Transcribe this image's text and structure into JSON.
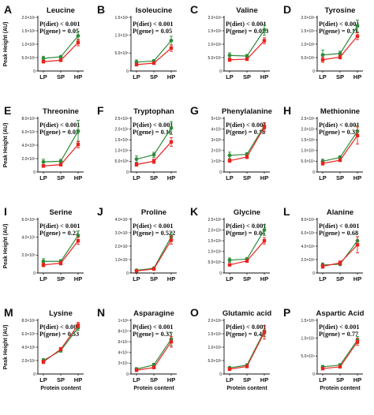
{
  "colors": {
    "series_a": "#2e8b3a",
    "series_b": "#e8231f",
    "axis": "#111111"
  },
  "axis_labels": {
    "y": "Peak Height (AU)",
    "x": "Protein content"
  },
  "chart_data": [
    {
      "type": "line",
      "letter": "A",
      "title": "Leucine",
      "stat_diet": "P(diet) < 0.001",
      "stat_gene": "P(gene) = 0.05",
      "ticks": [
        "0",
        "5.0×10⁵",
        "1.0×10⁶",
        "1.5×10⁶",
        "2.0×10⁶"
      ],
      "ylim": [
        0,
        2000000
      ],
      "categories": [
        "LP",
        "SP",
        "HP"
      ],
      "series": [
        {
          "color": "#2e8b3a",
          "values": [
            470000,
            530000,
            1310000
          ],
          "err": [
            80000,
            50000,
            160000
          ]
        },
        {
          "color": "#e8231f",
          "values": [
            350000,
            400000,
            1060000
          ],
          "err": [
            50000,
            40000,
            120000
          ]
        }
      ]
    },
    {
      "type": "line",
      "letter": "B",
      "title": "Isoleucine",
      "stat_diet": "P(diet) < 0.001",
      "stat_gene": "P(gene) = 0.05",
      "ticks": [
        "0",
        "5.0×10⁵",
        "1.0×10⁶",
        "1.5×10⁶"
      ],
      "ylim": [
        0,
        1500000
      ],
      "categories": [
        "LP",
        "SP",
        "HP"
      ],
      "series": [
        {
          "color": "#2e8b3a",
          "values": [
            250000,
            280000,
            850000
          ],
          "err": [
            60000,
            40000,
            120000
          ]
        },
        {
          "color": "#e8231f",
          "values": [
            180000,
            220000,
            640000
          ],
          "err": [
            40000,
            30000,
            90000
          ]
        }
      ]
    },
    {
      "type": "line",
      "letter": "C",
      "title": "Valine",
      "stat_diet": "P(diet) < 0.001",
      "stat_gene": "P(gene) = 0.023",
      "ticks": [
        "0",
        "5.0×10⁵",
        "1.0×10⁶",
        "1.5×10⁶",
        "2.0×10⁶"
      ],
      "ylim": [
        0,
        2000000
      ],
      "categories": [
        "LP",
        "SP",
        "HP"
      ],
      "series": [
        {
          "color": "#2e8b3a",
          "values": [
            580000,
            560000,
            1530000
          ],
          "err": [
            100000,
            60000,
            200000
          ]
        },
        {
          "color": "#e8231f",
          "values": [
            420000,
            440000,
            1130000
          ],
          "err": [
            60000,
            40000,
            110000
          ]
        }
      ]
    },
    {
      "type": "line",
      "letter": "D",
      "title": "Tyrosine",
      "stat_diet": "P(diet) < 0.001",
      "stat_gene": "P(gene) = 0.11",
      "ticks": [
        "0",
        "5.0×10⁵",
        "1.0×10⁶",
        "1.5×10⁶",
        "2.0×10⁶"
      ],
      "ylim": [
        0,
        2000000
      ],
      "categories": [
        "LP",
        "SP",
        "HP"
      ],
      "series": [
        {
          "color": "#2e8b3a",
          "values": [
            600000,
            650000,
            1680000
          ],
          "err": [
            180000,
            90000,
            220000
          ]
        },
        {
          "color": "#e8231f",
          "values": [
            420000,
            520000,
            1300000
          ],
          "err": [
            100000,
            70000,
            130000
          ]
        }
      ]
    },
    {
      "type": "line",
      "letter": "E",
      "title": "Threonine",
      "stat_diet": "P(diet) < 0.001",
      "stat_gene": "P(gene) = 0.03",
      "ticks": [
        "0",
        "2.0×10⁵",
        "4.0×10⁵",
        "6.0×10⁵",
        "8.0×10⁵"
      ],
      "ylim": [
        0,
        800000
      ],
      "categories": [
        "LP",
        "SP",
        "HP"
      ],
      "series": [
        {
          "color": "#2e8b3a",
          "values": [
            150000,
            160000,
            610000
          ],
          "err": [
            40000,
            30000,
            160000
          ]
        },
        {
          "color": "#e8231f",
          "values": [
            90000,
            110000,
            410000
          ],
          "err": [
            20000,
            20000,
            50000
          ]
        }
      ]
    },
    {
      "type": "line",
      "letter": "F",
      "title": "Tryptophan",
      "stat_diet": "P(diet) < 0.001",
      "stat_gene": "P(gene) = 0.16",
      "ticks": [
        "0",
        "5.0×10⁵",
        "1.0×10⁶",
        "1.5×10⁶",
        "2.0×10⁶",
        "2.5×10⁶"
      ],
      "ylim": [
        0,
        2500000
      ],
      "categories": [
        "LP",
        "SP",
        "HP"
      ],
      "series": [
        {
          "color": "#2e8b3a",
          "values": [
            600000,
            800000,
            2050000
          ],
          "err": [
            150000,
            120000,
            300000
          ]
        },
        {
          "color": "#e8231f",
          "values": [
            350000,
            500000,
            1400000
          ],
          "err": [
            80000,
            100000,
            200000
          ]
        }
      ]
    },
    {
      "type": "line",
      "letter": "G",
      "title": "Phenylalanine",
      "stat_diet": "P(diet) < 0.001",
      "stat_gene": "P(gene) = 0.18",
      "ticks": [
        "0",
        "1×10⁵",
        "2×10⁵",
        "3×10⁵",
        "4×10⁵",
        "5×10⁵"
      ],
      "ylim": [
        0,
        500000
      ],
      "categories": [
        "LP",
        "SP",
        "HP"
      ],
      "series": [
        {
          "color": "#2e8b3a",
          "values": [
            155000,
            165000,
            430000
          ],
          "err": [
            30000,
            15000,
            30000
          ]
        },
        {
          "color": "#e8231f",
          "values": [
            105000,
            140000,
            420000
          ],
          "err": [
            15000,
            15000,
            40000
          ]
        }
      ]
    },
    {
      "type": "line",
      "letter": "H",
      "title": "Methionine",
      "stat_diet": "P(diet) < 0.001",
      "stat_gene": "P(gene) = 0.32",
      "ticks": [
        "0",
        "5.0×10⁴",
        "1.0×10⁵",
        "1.5×10⁵",
        "2.0×10⁵",
        "2.5×10⁵"
      ],
      "ylim": [
        0,
        250000
      ],
      "categories": [
        "LP",
        "SP",
        "HP"
      ],
      "series": [
        {
          "color": "#2e8b3a",
          "values": [
            50000,
            68000,
            190000
          ],
          "err": [
            10000,
            8000,
            25000
          ]
        },
        {
          "color": "#e8231f",
          "values": [
            40000,
            55000,
            170000
          ],
          "err": [
            8000,
            6000,
            40000
          ]
        }
      ]
    },
    {
      "type": "line",
      "letter": "I",
      "title": "Serine",
      "stat_diet": "P(diet) < 0.001",
      "stat_gene": "P(gene) = 0.22",
      "ticks": [
        "0",
        "2.0×10⁵",
        "4.0×10⁵",
        "6.0×10⁵"
      ],
      "ylim": [
        0,
        600000
      ],
      "categories": [
        "LP",
        "SP",
        "HP"
      ],
      "series": [
        {
          "color": "#2e8b3a",
          "values": [
            130000,
            130000,
            420000
          ],
          "err": [
            30000,
            20000,
            50000
          ]
        },
        {
          "color": "#e8231f",
          "values": [
            90000,
            110000,
            360000
          ],
          "err": [
            20000,
            20000,
            40000
          ]
        }
      ]
    },
    {
      "type": "line",
      "letter": "J",
      "title": "Proline",
      "stat_diet": "P(diet) < 0.001",
      "stat_gene": "P(gene) = 0.522",
      "ticks": [
        "0",
        "1.0×10⁷",
        "2.0×10⁷",
        "3.0×10⁷",
        "4.0×10⁷"
      ],
      "ylim": [
        0,
        40000000
      ],
      "categories": [
        "LP",
        "SP",
        "HP"
      ],
      "series": [
        {
          "color": "#2e8b3a",
          "values": [
            2000000,
            3500000,
            27000000
          ],
          "err": [
            400000,
            500000,
            3000000
          ]
        },
        {
          "color": "#e8231f",
          "values": [
            1500000,
            3000000,
            24500000
          ],
          "err": [
            300000,
            500000,
            3000000
          ]
        }
      ]
    },
    {
      "type": "line",
      "letter": "K",
      "title": "Glycine",
      "stat_diet": "P(diet) < 0.001",
      "stat_gene": "P(gene) = 0.04",
      "ticks": [
        "0",
        "5.0×10⁵",
        "1.0×10⁶",
        "1.5×10⁶",
        "2.0×10⁶",
        "2.5×10⁶"
      ],
      "ylim": [
        0,
        2500000
      ],
      "categories": [
        "LP",
        "SP",
        "HP"
      ],
      "series": [
        {
          "color": "#2e8b3a",
          "values": [
            600000,
            650000,
            2000000
          ],
          "err": [
            100000,
            60000,
            250000
          ]
        },
        {
          "color": "#e8231f",
          "values": [
            380000,
            560000,
            1500000
          ],
          "err": [
            50000,
            60000,
            150000
          ]
        }
      ]
    },
    {
      "type": "line",
      "letter": "L",
      "title": "Alanine",
      "stat_diet": "P(diet) < 0.001",
      "stat_gene": "P(gene) = 0.68",
      "ticks": [
        "0",
        "2.0×10⁶",
        "4.0×10⁶",
        "6.0×10⁶",
        "8.0×10⁶"
      ],
      "ylim": [
        0,
        8000000
      ],
      "categories": [
        "LP",
        "SP",
        "HP"
      ],
      "series": [
        {
          "color": "#2e8b3a",
          "values": [
            1200000,
            1300000,
            4800000
          ],
          "err": [
            300000,
            200000,
            600000
          ]
        },
        {
          "color": "#e8231f",
          "values": [
            1000000,
            1500000,
            4200000
          ],
          "err": [
            300000,
            300000,
            1200000
          ]
        }
      ]
    },
    {
      "type": "line",
      "letter": "M",
      "title": "Lysine",
      "stat_diet": "P(diet) < 0.001",
      "stat_gene": "P(gene) = 0.53",
      "ticks": [
        "0",
        "2.0×10⁵",
        "4.0×10⁵",
        "6.0×10⁵",
        "8.0×10⁵"
      ],
      "ylim": [
        0,
        800000
      ],
      "categories": [
        "LP",
        "SP",
        "HP"
      ],
      "series": [
        {
          "color": "#2e8b3a",
          "values": [
            200000,
            350000,
            690000
          ],
          "err": [
            30000,
            25000,
            40000
          ]
        },
        {
          "color": "#e8231f",
          "values": [
            180000,
            370000,
            730000
          ],
          "err": [
            25000,
            25000,
            40000
          ]
        }
      ]
    },
    {
      "type": "line",
      "letter": "N",
      "title": "Asparagine",
      "stat_diet": "P(diet) < 0.001",
      "stat_gene": "P(gene) = 0.33",
      "ticks": [
        "0",
        "2×10⁴",
        "4×10⁴",
        "6×10⁴",
        "8×10⁴",
        "1×10⁵"
      ],
      "ylim": [
        0,
        100000
      ],
      "categories": [
        "LP",
        "SP",
        "HP"
      ],
      "series": [
        {
          "color": "#2e8b3a",
          "values": [
            9000,
            17000,
            65000
          ],
          "err": [
            3000,
            3000,
            12000
          ]
        },
        {
          "color": "#e8231f",
          "values": [
            7000,
            12000,
            60000
          ],
          "err": [
            2000,
            2000,
            10000
          ]
        }
      ]
    },
    {
      "type": "line",
      "letter": "O",
      "title": "Glutamic acid",
      "stat_diet": "P(diet) < 0.001",
      "stat_gene": "P(gene) = 0.46",
      "ticks": [
        "0",
        "5.0×10⁵",
        "1.0×10⁶",
        "1.5×10⁶",
        "2.0×10⁶"
      ],
      "ylim": [
        0,
        2000000
      ],
      "categories": [
        "LP",
        "SP",
        "HP"
      ],
      "series": [
        {
          "color": "#2e8b3a",
          "values": [
            230000,
            330000,
            1600000
          ],
          "err": [
            40000,
            40000,
            200000
          ]
        },
        {
          "color": "#e8231f",
          "values": [
            180000,
            280000,
            1550000
          ],
          "err": [
            30000,
            40000,
            250000
          ]
        }
      ]
    },
    {
      "type": "line",
      "letter": "P",
      "title": "Aspartic Acid",
      "stat_diet": "P(diet) < 0.001",
      "stat_gene": "P(gene) = 0.77",
      "ticks": [
        "0",
        "5.0×10⁴",
        "1.0×10⁵",
        "1.5×10⁵"
      ],
      "ylim": [
        0,
        150000
      ],
      "categories": [
        "LP",
        "SP",
        "HP"
      ],
      "series": [
        {
          "color": "#2e8b3a",
          "values": [
            20000,
            25000,
            95000
          ],
          "err": [
            4000,
            4000,
            10000
          ]
        },
        {
          "color": "#e8231f",
          "values": [
            15000,
            20000,
            90000
          ],
          "err": [
            3000,
            3000,
            10000
          ]
        }
      ]
    }
  ]
}
